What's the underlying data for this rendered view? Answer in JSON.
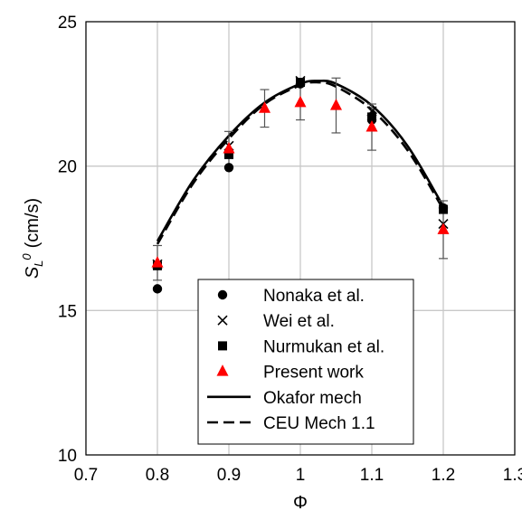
{
  "chart_data": {
    "type": "scatter",
    "title": "",
    "xlabel": "Φ",
    "ylabel": "S",
    "ylabel_sub": "L",
    "ylabel_sup": "0",
    "ylabel_unit": "(cm/s)",
    "xlim": [
      0.7,
      1.3
    ],
    "ylim": [
      10,
      25
    ],
    "x_ticks": [
      "0.7",
      "0.8",
      "0.9",
      "1",
      "1.1",
      "1.2",
      "1.3"
    ],
    "y_ticks": [
      "10",
      "15",
      "20",
      "25"
    ],
    "grid": true,
    "legend_position": "bottom-center",
    "series": [
      {
        "name": "Nonaka et al.",
        "marker": "circle",
        "color": "#000000",
        "points": [
          [
            0.8,
            15.75
          ],
          [
            0.9,
            19.95
          ],
          [
            1.0,
            22.85
          ],
          [
            1.1,
            21.6
          ],
          [
            1.2,
            18.55
          ]
        ]
      },
      {
        "name": "Wei et al.",
        "marker": "x",
        "color": "#000000",
        "points": [
          [
            0.8,
            16.6
          ],
          [
            0.9,
            20.7
          ],
          [
            1.0,
            22.95
          ],
          [
            1.1,
            21.9
          ],
          [
            1.2,
            18.0
          ]
        ]
      },
      {
        "name": "Nurmukan et al.",
        "marker": "square",
        "color": "#000000",
        "points": [
          [
            0.8,
            16.55
          ],
          [
            0.9,
            20.4
          ],
          [
            1.0,
            22.9
          ],
          [
            1.1,
            21.7
          ],
          [
            1.2,
            18.5
          ]
        ]
      },
      {
        "name": "Present work",
        "marker": "triangle",
        "color": "#ff0000",
        "points": [
          [
            0.8,
            16.65
          ],
          [
            0.9,
            20.6
          ],
          [
            0.95,
            22.0
          ],
          [
            1.0,
            22.2
          ],
          [
            1.05,
            22.1
          ],
          [
            1.1,
            21.35
          ],
          [
            1.2,
            17.8
          ]
        ],
        "error": [
          0.6,
          0.6,
          0.65,
          0.6,
          0.95,
          0.8,
          1.0
        ]
      },
      {
        "name": "Okafor mech",
        "style": "solid-line",
        "color": "#000000",
        "points": [
          [
            0.8,
            17.4
          ],
          [
            0.85,
            19.5
          ],
          [
            0.9,
            21.05
          ],
          [
            0.95,
            22.2
          ],
          [
            1.0,
            22.85
          ],
          [
            1.025,
            22.95
          ],
          [
            1.05,
            22.85
          ],
          [
            1.1,
            22.1
          ],
          [
            1.15,
            20.7
          ],
          [
            1.2,
            18.6
          ]
        ]
      },
      {
        "name": "CEU Mech 1.1",
        "style": "dashed-line",
        "color": "#000000",
        "points": [
          [
            0.8,
            17.3
          ],
          [
            0.85,
            19.4
          ],
          [
            0.9,
            20.95
          ],
          [
            0.95,
            22.15
          ],
          [
            1.0,
            22.8
          ],
          [
            1.025,
            22.9
          ],
          [
            1.05,
            22.75
          ],
          [
            1.1,
            21.95
          ],
          [
            1.15,
            20.55
          ],
          [
            1.2,
            18.5
          ]
        ]
      }
    ]
  }
}
